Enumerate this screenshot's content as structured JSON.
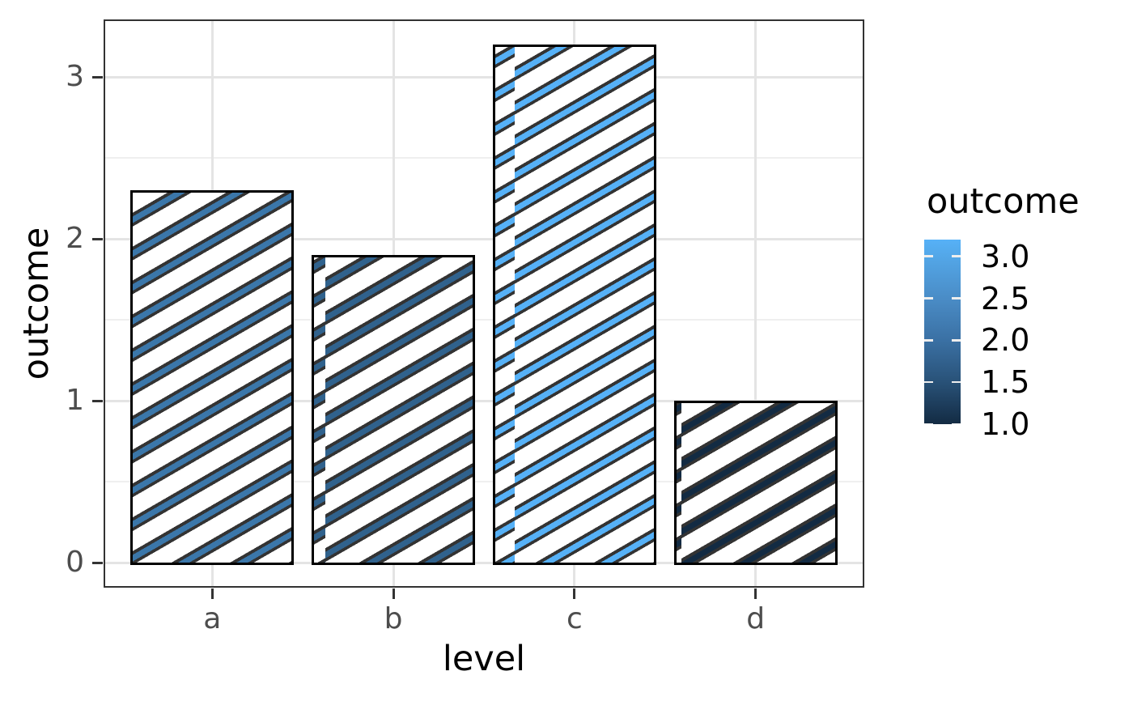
{
  "chart_data": {
    "type": "bar",
    "categories": [
      "a",
      "b",
      "c",
      "d"
    ],
    "values": [
      2.3,
      1.9,
      3.2,
      1.0
    ],
    "title": "",
    "xlabel": "level",
    "ylabel": "outcome",
    "x_tick_labels": [
      "a",
      "b",
      "c",
      "d"
    ],
    "y_tick_labels": [
      "0",
      "1",
      "2",
      "3"
    ],
    "y_tick_values": [
      0,
      1,
      2,
      3
    ],
    "y_minor_tick_values": [
      0.5,
      1.5,
      2.5
    ],
    "ylim": [
      -0.16,
      3.36
    ],
    "grid": "horizontal major+minor, vertical major at category centers",
    "bar_style": {
      "fill": "#ffffff",
      "border_color": "#000000",
      "pattern": "diagonal-stripe",
      "stripe_angle_deg": 30,
      "stripe_outline_color": "#333333",
      "stripe_fill_colors": [
        "#3B77AA",
        "#30628D",
        "#56B1F7",
        "#132B43"
      ]
    },
    "legend": {
      "title": "outcome",
      "position": "right",
      "type": "colorbar",
      "range": [
        1.0,
        3.2
      ],
      "tick_labels": [
        "3.0",
        "2.5",
        "2.0",
        "1.5",
        "1.0"
      ],
      "tick_values": [
        3.0,
        2.5,
        2.0,
        1.5,
        1.0
      ],
      "gradient_low_color": "#132B43",
      "gradient_high_color": "#56B1F7",
      "gradient_stops": [
        [
          "#56B1F7",
          0
        ],
        [
          "#53A7E8",
          9
        ],
        [
          "#4A8CC6",
          32
        ],
        [
          "#3A70A3",
          55
        ],
        [
          "#295278",
          77
        ],
        [
          "#132B43",
          100
        ]
      ],
      "tick_mark_color": "#eeeeee"
    },
    "style_colors": {
      "panel_background": "#ffffff",
      "panel_border": "#333333",
      "grid_major": "#E4E4E4",
      "grid_minor": "#EFEFEF",
      "axis_tick": "#333333",
      "axis_tick_label": "#4d4d4d",
      "axis_title": "#000000"
    }
  }
}
